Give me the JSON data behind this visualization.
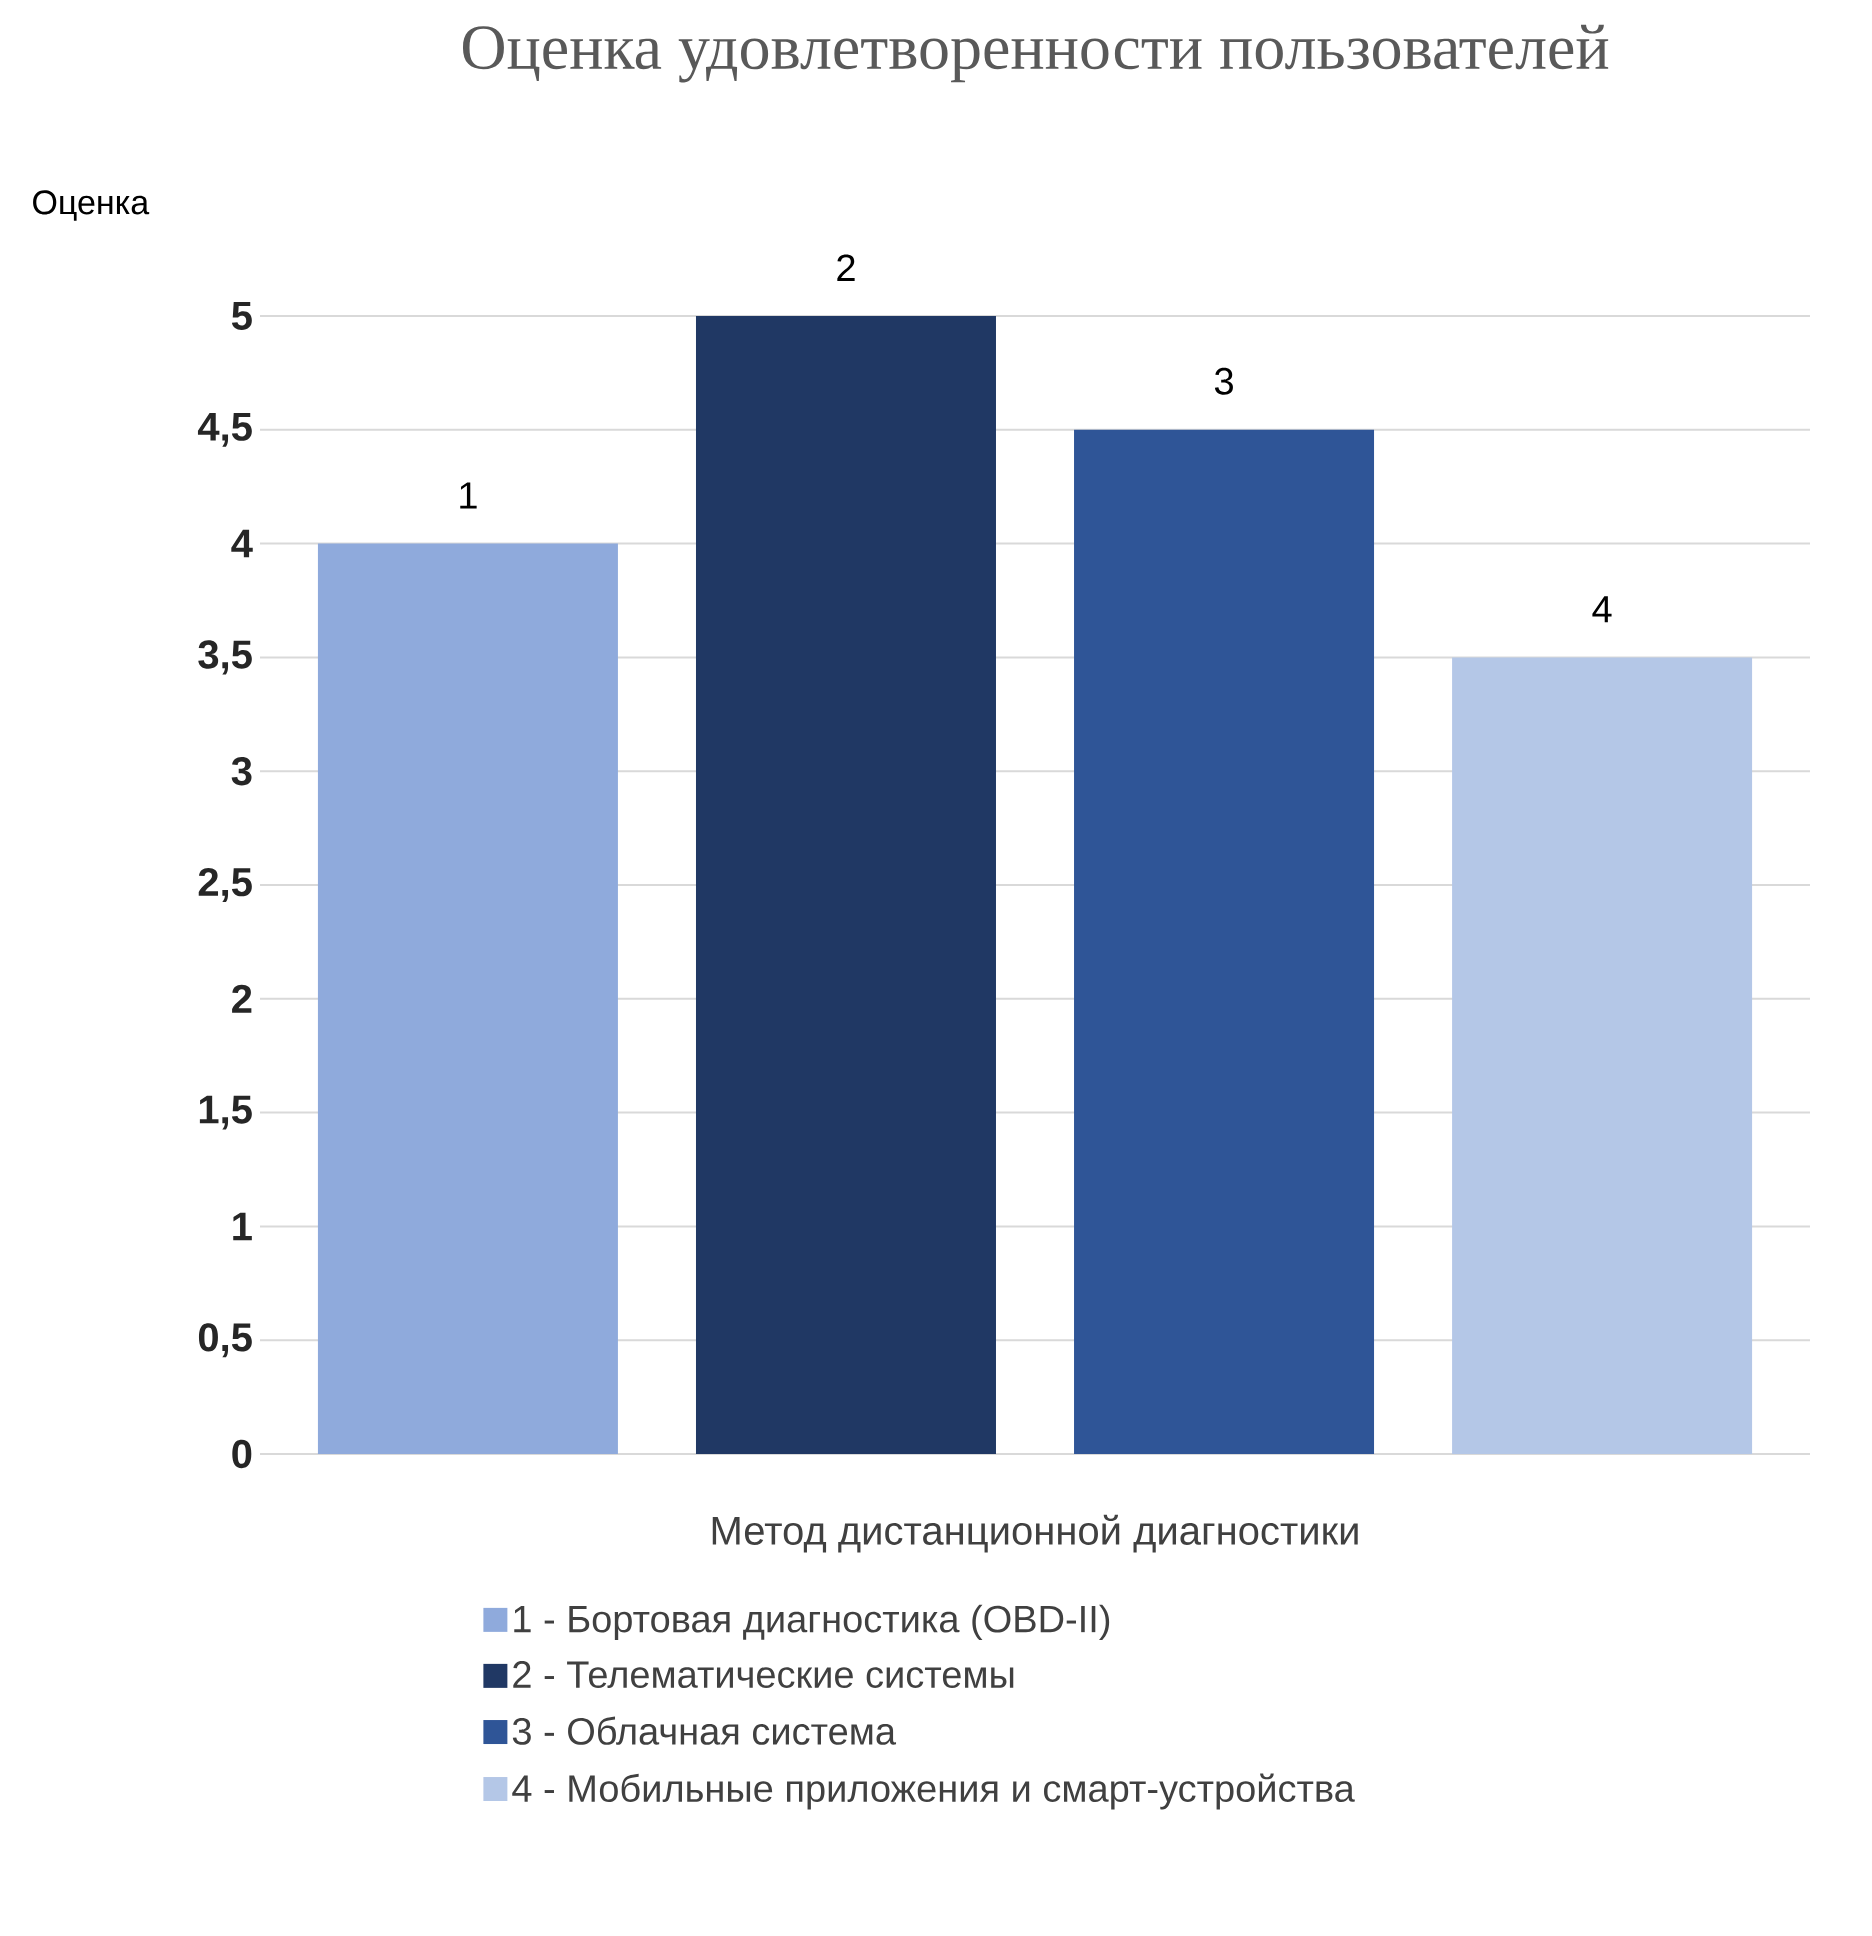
{
  "chart_data": {
    "type": "bar",
    "title": "Оценка удовлетворенности пользователей",
    "xlabel": "Метод дистанционной диагностики",
    "ylabel": "Оценка",
    "categories": [
      "1",
      "2",
      "3",
      "4"
    ],
    "series": [
      {
        "name": "1 - Бортовая диагностика (OBD-II)",
        "color": "#8faadc",
        "values": [
          4,
          null,
          null,
          null
        ]
      },
      {
        "name": "2 - Телематические системы",
        "color": "#203864",
        "values": [
          null,
          5,
          null,
          null
        ]
      },
      {
        "name": "3 - Облачная система",
        "color": "#2f5597",
        "values": [
          null,
          null,
          4.5,
          null
        ]
      },
      {
        "name": "4 - Мобильные приложения и смарт-устройства",
        "color": "#b4c7e7",
        "values": [
          null,
          null,
          null,
          3.5
        ]
      }
    ],
    "ylim": [
      0,
      5
    ],
    "yticks": [
      0,
      {
        "value": 0.5,
        "label": "0,5"
      },
      1,
      {
        "value": 1.5,
        "label": "1,5"
      },
      2,
      {
        "value": 2.5,
        "label": "2,5"
      },
      3,
      {
        "value": 3.5,
        "label": "3,5"
      },
      4,
      {
        "value": 4.5,
        "label": "4,5"
      },
      5
    ],
    "grid": "y",
    "legend": "bottom"
  }
}
